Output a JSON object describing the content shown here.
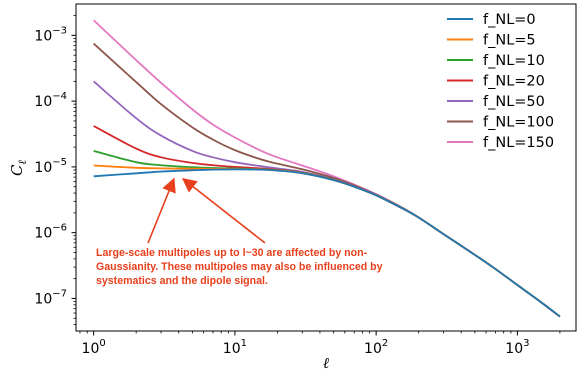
{
  "chart_data": {
    "type": "line",
    "title": "",
    "xlabel": "ℓ",
    "ylabel": "C_ℓ",
    "xscale": "log",
    "yscale": "log",
    "xlim": [
      0.75,
      2600
    ],
    "ylim": [
      3.2e-08,
      0.003
    ],
    "grid": false,
    "legend_position": "top-right",
    "x_ticks": [
      {
        "value": 1,
        "base": "10",
        "exp": "0"
      },
      {
        "value": 10,
        "base": "10",
        "exp": "1"
      },
      {
        "value": 100,
        "base": "10",
        "exp": "2"
      },
      {
        "value": 1000,
        "base": "10",
        "exp": "3"
      }
    ],
    "y_ticks": [
      {
        "value": 1e-07,
        "base": "10",
        "exp": "−7"
      },
      {
        "value": 1e-06,
        "base": "10",
        "exp": "−6"
      },
      {
        "value": 1e-05,
        "base": "10",
        "exp": "−5"
      },
      {
        "value": 0.0001,
        "base": "10",
        "exp": "−4"
      },
      {
        "value": 0.001,
        "base": "10",
        "exp": "−3"
      }
    ],
    "series": [
      {
        "name": "f_NL=0",
        "color": "#1f77b4",
        "x": [
          1,
          2,
          3,
          5,
          7,
          10,
          15,
          20,
          30,
          50,
          70,
          100,
          150,
          200,
          300,
          500,
          700,
          1000,
          1500,
          2000
        ],
        "y": [
          7.2e-06,
          8e-06,
          8.5e-06,
          8.9e-06,
          9.1e-06,
          9.2e-06,
          9.1e-06,
          8.8e-06,
          8e-06,
          6.3e-06,
          5e-06,
          3.7e-06,
          2.4e-06,
          1.7e-06,
          9.5e-07,
          4.6e-07,
          2.8e-07,
          1.6e-07,
          8.5e-08,
          5.3e-08
        ]
      },
      {
        "name": "f_NL=5",
        "color": "#ff7f0e",
        "x": [
          1,
          2,
          3,
          5,
          7,
          10,
          15,
          20,
          30,
          50,
          70,
          100,
          150,
          200,
          300,
          500,
          700,
          1000,
          1500,
          2000
        ],
        "y": [
          1.05e-05,
          9.7e-06,
          9.5e-06,
          9.4e-06,
          9.35e-06,
          9.3e-06,
          9.15e-06,
          8.85e-06,
          8.05e-06,
          6.3e-06,
          5e-06,
          3.7e-06,
          2.4e-06,
          1.7e-06,
          9.5e-07,
          4.6e-07,
          2.8e-07,
          1.6e-07,
          8.5e-08,
          5.3e-08
        ]
      },
      {
        "name": "f_NL=10",
        "color": "#2ca02c",
        "x": [
          1,
          2,
          3,
          5,
          7,
          10,
          15,
          20,
          30,
          50,
          70,
          100,
          150,
          200,
          300,
          500,
          700,
          1000,
          1500,
          2000
        ],
        "y": [
          1.75e-05,
          1.18e-05,
          1.06e-05,
          9.9e-06,
          9.6e-06,
          9.45e-06,
          9.2e-06,
          8.9e-06,
          8.1e-06,
          6.35e-06,
          5e-06,
          3.7e-06,
          2.4e-06,
          1.7e-06,
          9.5e-07,
          4.6e-07,
          2.8e-07,
          1.6e-07,
          8.5e-08,
          5.3e-08
        ]
      },
      {
        "name": "f_NL=20",
        "color": "#d62728",
        "x": [
          1,
          2,
          3,
          5,
          7,
          10,
          15,
          20,
          30,
          50,
          70,
          100,
          150,
          200,
          300,
          500,
          700,
          1000,
          1500,
          2000
        ],
        "y": [
          4.2e-05,
          1.9e-05,
          1.4e-05,
          1.15e-05,
          1.06e-05,
          1e-05,
          9.5e-06,
          9.05e-06,
          8.2e-06,
          6.4e-06,
          5.05e-06,
          3.7e-06,
          2.4e-06,
          1.7e-06,
          9.5e-07,
          4.6e-07,
          2.8e-07,
          1.6e-07,
          8.5e-08,
          5.3e-08
        ]
      },
      {
        "name": "f_NL=50",
        "color": "#9467bd",
        "x": [
          1,
          2,
          3,
          5,
          7,
          10,
          15,
          20,
          30,
          50,
          70,
          100,
          150,
          200,
          300,
          500,
          700,
          1000,
          1500,
          2000
        ],
        "y": [
          0.0002,
          5.5e-05,
          3e-05,
          1.75e-05,
          1.4e-05,
          1.18e-05,
          1.03e-05,
          9.5e-06,
          8.4e-06,
          6.5e-06,
          5.1e-06,
          3.75e-06,
          2.4e-06,
          1.7e-06,
          9.5e-07,
          4.6e-07,
          2.8e-07,
          1.6e-07,
          8.5e-08,
          5.3e-08
        ]
      },
      {
        "name": "f_NL=100",
        "color": "#8c564b",
        "x": [
          1,
          2,
          3,
          5,
          7,
          10,
          15,
          20,
          30,
          50,
          70,
          100,
          150,
          200,
          300,
          500,
          700,
          1000,
          1500,
          2000
        ],
        "y": [
          0.00075,
          0.000195,
          9e-05,
          4e-05,
          2.6e-05,
          1.8e-05,
          1.32e-05,
          1.12e-05,
          9.2e-06,
          6.8e-06,
          5.25e-06,
          3.8e-06,
          2.45e-06,
          1.7e-06,
          9.5e-07,
          4.6e-07,
          2.8e-07,
          1.6e-07,
          8.5e-08,
          5.3e-08
        ]
      },
      {
        "name": "f_NL=150",
        "color": "#e377c2",
        "x": [
          1,
          2,
          3,
          5,
          7,
          10,
          15,
          20,
          30,
          50,
          70,
          100,
          150,
          200,
          300,
          500,
          700,
          1000,
          1500,
          2000
        ],
        "y": [
          0.0017,
          0.00042,
          0.00019,
          7.5e-05,
          4.4e-05,
          2.8e-05,
          1.8e-05,
          1.4e-05,
          1.05e-05,
          7.2e-06,
          5.4e-06,
          3.85e-06,
          2.45e-06,
          1.7e-06,
          9.5e-07,
          4.6e-07,
          2.8e-07,
          1.6e-07,
          8.5e-08,
          5.3e-08
        ]
      }
    ],
    "annotation": {
      "lines": [
        "Large-scale multipoles up to l~30 are affected by non-",
        "Gaussianity. These multipoles may also be influenced by",
        "systematics and the dipole signal."
      ],
      "color": "#e8401c",
      "arrow_targets": [
        {
          "x": 3.7,
          "y": 9e-06
        },
        {
          "x": 4.3,
          "y": 9e-06
        }
      ]
    }
  }
}
